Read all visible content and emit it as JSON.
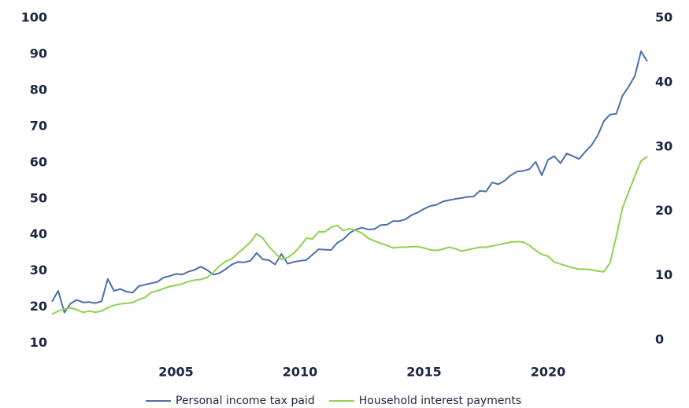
{
  "chart_data": {
    "type": "line",
    "x": [
      2000,
      2000.25,
      2000.5,
      2000.75,
      2001,
      2001.25,
      2001.5,
      2001.75,
      2002,
      2002.25,
      2002.5,
      2002.75,
      2003,
      2003.25,
      2003.5,
      2003.75,
      2004,
      2004.25,
      2004.5,
      2004.75,
      2005,
      2005.25,
      2005.5,
      2005.75,
      2006,
      2006.25,
      2006.5,
      2006.75,
      2007,
      2007.25,
      2007.5,
      2007.75,
      2008,
      2008.25,
      2008.5,
      2008.75,
      2009,
      2009.25,
      2009.5,
      2009.75,
      2010,
      2010.25,
      2010.5,
      2010.75,
      2011,
      2011.25,
      2011.5,
      2011.75,
      2012,
      2012.25,
      2012.5,
      2012.75,
      2013,
      2013.25,
      2013.5,
      2013.75,
      2014,
      2014.25,
      2014.5,
      2014.75,
      2015,
      2015.25,
      2015.5,
      2015.75,
      2016,
      2016.25,
      2016.5,
      2016.75,
      2017,
      2017.25,
      2017.5,
      2017.75,
      2018,
      2018.25,
      2018.5,
      2018.75,
      2019,
      2019.25,
      2019.5,
      2019.75,
      2020,
      2020.25,
      2020.5,
      2020.75,
      2021,
      2021.25,
      2021.5,
      2021.75,
      2022,
      2022.25,
      2022.5,
      2022.75,
      2023,
      2023.25,
      2023.5,
      2023.75,
      2024
    ],
    "series": [
      {
        "name": "Personal income tax paid",
        "color": "#4b6fa8",
        "values": [
          21.5,
          24.5,
          18.5,
          21,
          22,
          21.3,
          21.4,
          21.1,
          21.6,
          27.8,
          24.5,
          25,
          24.3,
          24,
          25.8,
          26.2,
          26.6,
          27,
          28.2,
          28.6,
          29.2,
          29,
          29.8,
          30.3,
          31.2,
          30.3,
          29,
          29.4,
          30.5,
          31.8,
          32.5,
          32.4,
          32.8,
          35,
          33.2,
          33,
          31.8,
          34.7,
          32,
          32.5,
          32.8,
          33,
          34.5,
          36,
          35.9,
          35.8,
          37.8,
          38.8,
          40.5,
          41.5,
          42,
          41.5,
          41.6,
          42.7,
          42.8,
          43.8,
          43.8,
          44.3,
          45.5,
          46.2,
          47.2,
          48,
          48.3,
          49.2,
          49.6,
          49.9,
          50.2,
          50.5,
          50.6,
          52.2,
          52,
          54.5,
          54,
          55,
          56.5,
          57.5,
          57.7,
          58.2,
          60.2,
          56.5,
          60.8,
          61.8,
          59.8,
          62.5,
          61.8,
          61,
          63,
          64.8,
          67.5,
          71.5,
          73.3,
          73.5,
          78.5,
          81,
          84,
          90.8,
          88
        ]
      },
      {
        "name": "Household interest payments",
        "color": "#8fd14f",
        "axis": "y2",
        "values": [
          4,
          4.5,
          4.8,
          5,
          4.7,
          4.3,
          4.5,
          4.3,
          4.5,
          5,
          5.4,
          5.6,
          5.7,
          5.8,
          6.3,
          6.6,
          7.4,
          7.6,
          8,
          8.3,
          8.5,
          8.7,
          9.1,
          9.3,
          9.4,
          9.7,
          10.5,
          11.5,
          12.2,
          12.6,
          13.5,
          14.3,
          15.2,
          16.5,
          15.8,
          14.5,
          13.5,
          12.5,
          12.8,
          13.5,
          14.5,
          15.8,
          15.7,
          16.8,
          16.8,
          17.5,
          17.8,
          17,
          17.3,
          17,
          16.6,
          15.8,
          15.4,
          15,
          14.7,
          14.3,
          14.4,
          14.4,
          14.5,
          14.5,
          14.3,
          14,
          13.9,
          14.1,
          14.4,
          14.2,
          13.8,
          14,
          14.2,
          14.4,
          14.4,
          14.6,
          14.8,
          15,
          15.2,
          15.3,
          15.2,
          14.7,
          13.9,
          13.3,
          13,
          12.1,
          11.8,
          11.5,
          11.2,
          11,
          11,
          10.9,
          10.7,
          10.6,
          12,
          16,
          20.5,
          23,
          25.5,
          27.8,
          28.5
        ]
      }
    ],
    "xlim": [
      2000,
      2024
    ],
    "xticks": [
      2005,
      2010,
      2015,
      2020
    ],
    "ylim": [
      6,
      100
    ],
    "yticks": [
      10,
      20,
      30,
      40,
      50,
      60,
      70,
      80,
      90,
      100
    ],
    "y2lim": [
      -2.75,
      50
    ],
    "y2ticks": [
      0,
      10,
      20,
      30,
      40,
      50
    ],
    "legend": "bottom"
  }
}
